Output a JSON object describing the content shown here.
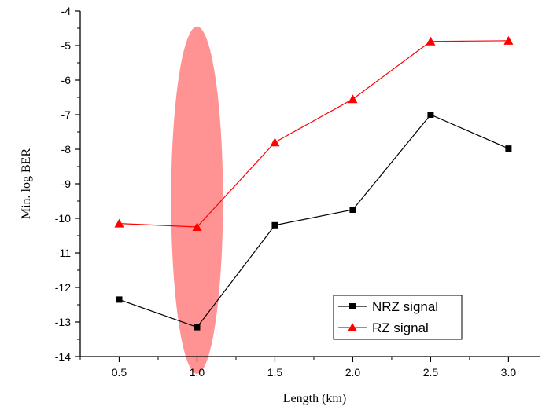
{
  "chart_data": {
    "type": "line",
    "xlabel": "Length (km)",
    "ylabel": "Min. log BER",
    "xlim": [
      0.25,
      3.2
    ],
    "ylim": [
      -14,
      -4
    ],
    "x_ticks": [
      "0.5",
      "1.0",
      "1.5",
      "2.0",
      "2.5",
      "3.0"
    ],
    "y_ticks": [
      "-4",
      "-5",
      "-6",
      "-7",
      "-8",
      "-9",
      "-10",
      "-11",
      "-12",
      "-13",
      "-14"
    ],
    "x": [
      0.5,
      1.0,
      1.5,
      2.0,
      2.5,
      3.0
    ],
    "series": [
      {
        "name": "NRZ signal",
        "color": "#000000",
        "marker": "square",
        "values": [
          -12.35,
          -13.15,
          -10.2,
          -9.75,
          -7.0,
          -7.98
        ]
      },
      {
        "name": "RZ signal",
        "color": "#ff0000",
        "marker": "triangle",
        "values": [
          -10.15,
          -10.25,
          -7.8,
          -6.55,
          -4.88,
          -4.86
        ]
      }
    ],
    "highlight": {
      "x": 1.0,
      "y_range": [
        -14.5,
        -4.45
      ],
      "color": "#ff8080"
    },
    "legend": "lower-right",
    "grid": false
  }
}
